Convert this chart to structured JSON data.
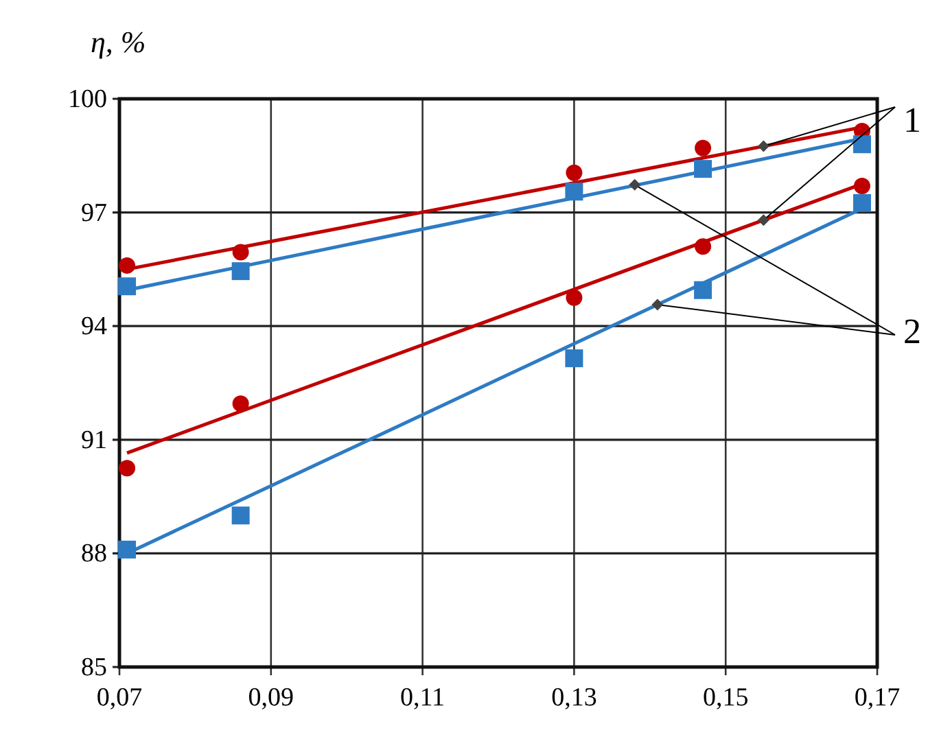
{
  "chart_data": {
    "type": "scatter",
    "ylabel": "η, %",
    "xlim": [
      0.07,
      0.17
    ],
    "ylim": [
      85,
      100
    ],
    "xticks": [
      {
        "value": 0.07,
        "label": "0,07"
      },
      {
        "value": 0.09,
        "label": "0,09"
      },
      {
        "value": 0.11,
        "label": "0,11"
      },
      {
        "value": 0.13,
        "label": "0,13"
      },
      {
        "value": 0.15,
        "label": "0,15"
      },
      {
        "value": 0.17,
        "label": "0,17"
      }
    ],
    "yticks": [
      85,
      88,
      91,
      94,
      97,
      100
    ],
    "grid": true,
    "annotations": [
      {
        "text": "1",
        "x": 0.155,
        "y": 98.75
      },
      {
        "text": "2",
        "x": 0.138,
        "y": 97.73
      }
    ],
    "series": [
      {
        "type": "line",
        "marker": "none",
        "color": "#c00000",
        "x": [
          0.071,
          0.168
        ],
        "values": [
          95.5,
          99.25
        ]
      },
      {
        "type": "line",
        "marker": "none",
        "color": "#2e7bc4",
        "x": [
          0.071,
          0.168
        ],
        "values": [
          94.95,
          98.95
        ]
      },
      {
        "type": "line",
        "marker": "none",
        "color": "#c00000",
        "x": [
          0.071,
          0.168
        ],
        "values": [
          90.65,
          97.75
        ]
      },
      {
        "type": "line",
        "marker": "none",
        "color": "#2e7bc4",
        "x": [
          0.071,
          0.168
        ],
        "values": [
          88.0,
          97.1
        ]
      },
      {
        "marker": "circle",
        "color": "#c00000",
        "x": [
          0.071,
          0.086,
          0.13,
          0.147,
          0.168
        ],
        "values": [
          95.6,
          95.95,
          98.05,
          98.7,
          99.15
        ]
      },
      {
        "marker": "square",
        "color": "#2e7bc4",
        "x": [
          0.071,
          0.086,
          0.13,
          0.147,
          0.168
        ],
        "values": [
          95.05,
          95.45,
          97.55,
          98.15,
          98.8
        ]
      },
      {
        "marker": "circle",
        "color": "#c00000",
        "x": [
          0.071,
          0.086,
          0.13,
          0.147,
          0.168
        ],
        "values": [
          90.25,
          91.95,
          94.75,
          96.1,
          97.7
        ]
      },
      {
        "marker": "square",
        "color": "#2e7bc4",
        "x": [
          0.071,
          0.086,
          0.13,
          0.147,
          0.168
        ],
        "values": [
          88.1,
          89.0,
          93.15,
          94.95,
          97.25
        ]
      }
    ]
  }
}
